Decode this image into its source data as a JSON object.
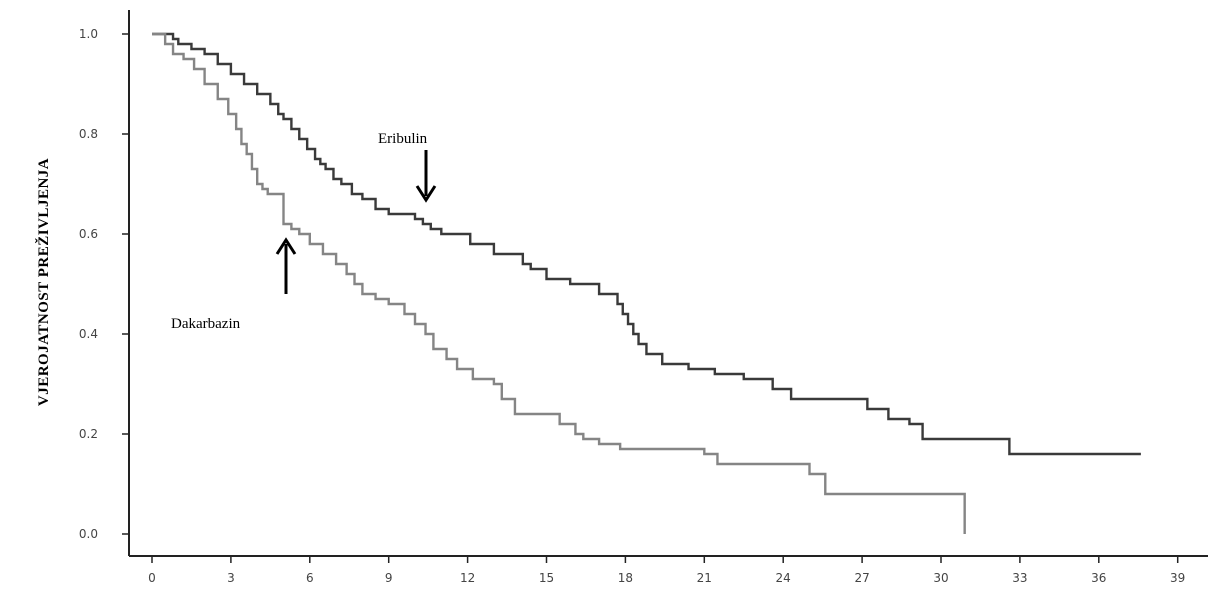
{
  "chart_data": {
    "type": "line",
    "title": "",
    "xlabel": "",
    "ylabel": "VJEROJATNOST PREŽIVLJENJA",
    "xlim": [
      0,
      40
    ],
    "ylim": [
      0,
      1.05
    ],
    "x_ticks": [
      0,
      3,
      6,
      9,
      12,
      15,
      18,
      21,
      24,
      27,
      30,
      33,
      36,
      39
    ],
    "y_ticks": [
      "0.0",
      "0.2",
      "0.4",
      "0.6",
      "0.8",
      "1.0"
    ],
    "grid": false,
    "step": true,
    "series": [
      {
        "name": "Eribulin",
        "color": "#3a3a3a",
        "x": [
          0,
          0.8,
          1.0,
          1.5,
          2.0,
          2.5,
          3.0,
          3.5,
          4.0,
          4.5,
          4.8,
          5.0,
          5.3,
          5.6,
          5.9,
          6.2,
          6.4,
          6.6,
          6.9,
          7.2,
          7.6,
          8.0,
          8.5,
          9.0,
          9.4,
          10.0,
          10.3,
          10.6,
          11.0,
          12.1,
          13.0,
          14.1,
          14.4,
          15.0,
          15.9,
          17.0,
          17.7,
          17.9,
          18.1,
          18.3,
          18.5,
          18.8,
          19.4,
          20.4,
          21.4,
          22.5,
          23.6,
          24.3,
          25.0,
          27.2,
          28.0,
          28.8,
          29.3,
          30.6,
          32.6,
          37.6
        ],
        "y": [
          1.0,
          0.99,
          0.98,
          0.97,
          0.96,
          0.94,
          0.92,
          0.9,
          0.88,
          0.86,
          0.84,
          0.83,
          0.81,
          0.79,
          0.77,
          0.75,
          0.74,
          0.73,
          0.71,
          0.7,
          0.68,
          0.67,
          0.65,
          0.64,
          0.64,
          0.63,
          0.62,
          0.61,
          0.6,
          0.58,
          0.56,
          0.54,
          0.53,
          0.51,
          0.5,
          0.48,
          0.46,
          0.44,
          0.42,
          0.4,
          0.38,
          0.36,
          0.34,
          0.33,
          0.32,
          0.31,
          0.29,
          0.27,
          0.27,
          0.25,
          0.23,
          0.22,
          0.19,
          0.19,
          0.16,
          0.16
        ]
      },
      {
        "name": "Dakarbazin",
        "color": "#858585",
        "x": [
          0,
          0.5,
          0.8,
          1.2,
          1.6,
          2.0,
          2.5,
          2.9,
          3.2,
          3.4,
          3.6,
          3.8,
          4.0,
          4.2,
          4.4,
          5.0,
          5.3,
          5.6,
          6.0,
          6.5,
          7.0,
          7.4,
          7.7,
          8.0,
          8.5,
          9.0,
          9.6,
          10.0,
          10.4,
          10.7,
          11.2,
          11.6,
          12.2,
          13.0,
          13.3,
          13.8,
          15.5,
          16.1,
          16.4,
          17.0,
          17.8,
          21.0,
          21.5,
          25.0,
          25.6,
          30.9
        ],
        "y": [
          1.0,
          0.98,
          0.96,
          0.95,
          0.93,
          0.9,
          0.87,
          0.84,
          0.81,
          0.78,
          0.76,
          0.73,
          0.7,
          0.69,
          0.68,
          0.62,
          0.61,
          0.6,
          0.58,
          0.56,
          0.54,
          0.52,
          0.5,
          0.48,
          0.47,
          0.46,
          0.44,
          0.42,
          0.4,
          0.37,
          0.35,
          0.33,
          0.31,
          0.3,
          0.27,
          0.24,
          0.22,
          0.2,
          0.19,
          0.18,
          0.17,
          0.16,
          0.14,
          0.12,
          0.08,
          0.0
        ]
      }
    ],
    "annotations": [
      {
        "text": "Eribulin",
        "series": 0
      },
      {
        "text": "Dakarbazin",
        "series": 1
      }
    ]
  }
}
